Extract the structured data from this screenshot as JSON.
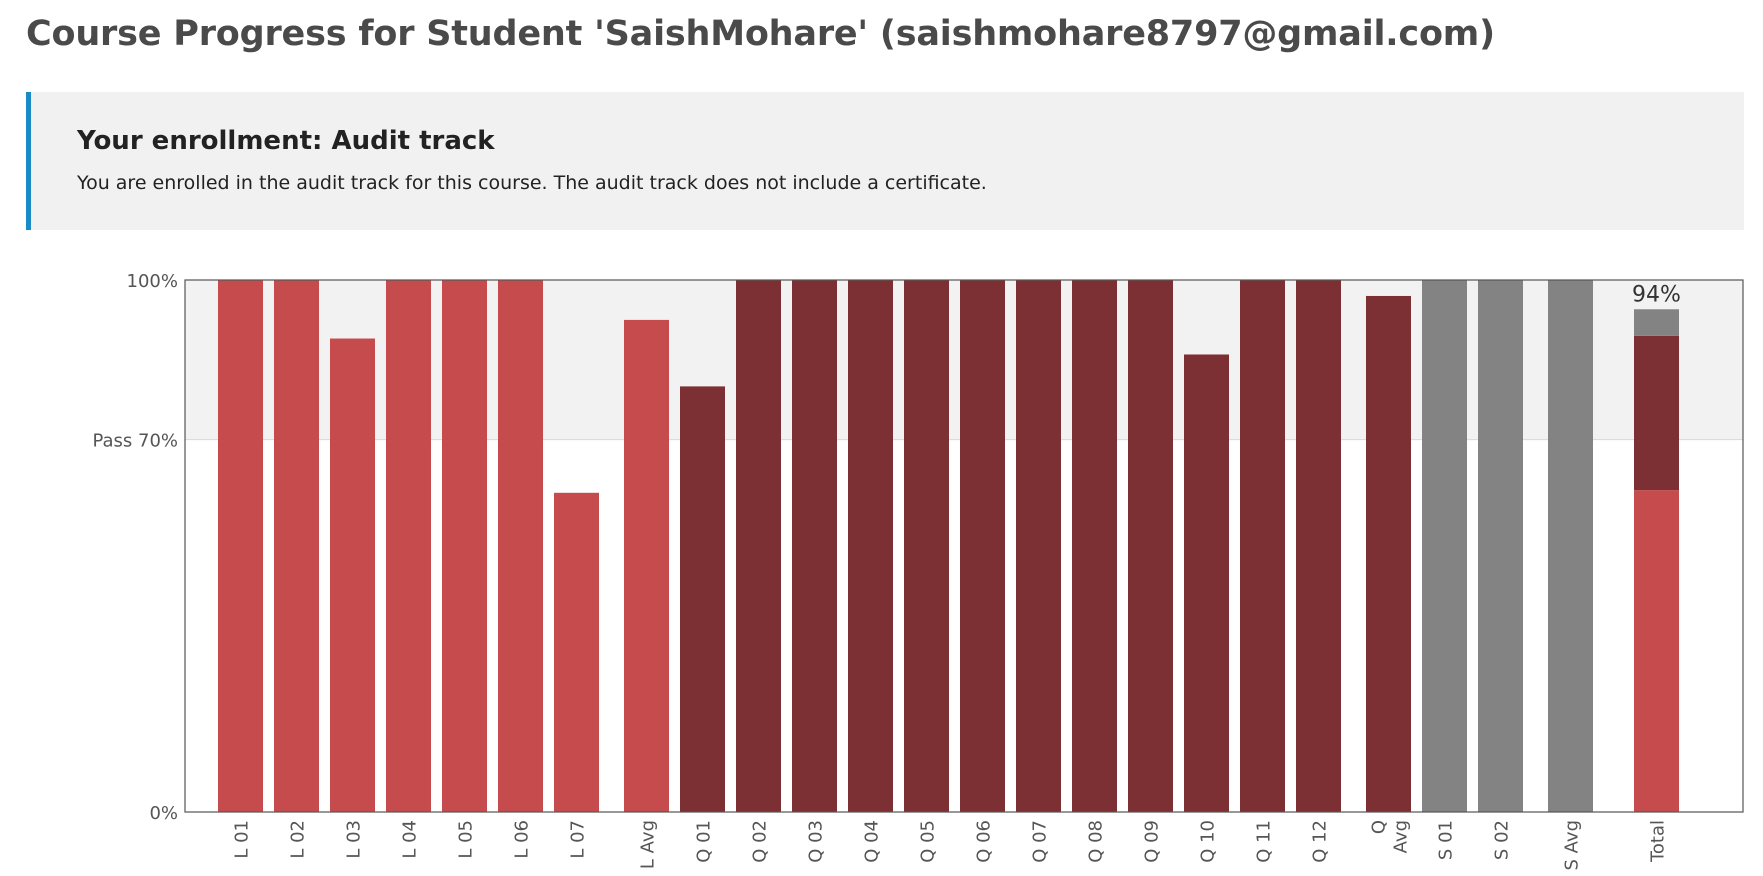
{
  "header": {
    "title": "Course Progress for Student 'SaishMohare' (saishmohare8797@gmail.com)"
  },
  "enrollment": {
    "heading": "Your enrollment: Audit track",
    "message": "You are enrolled in the audit track for this course. The audit track does not include a certificate."
  },
  "colors": {
    "lab": "#c64b4d",
    "quiz": "#7d3033",
    "survey": "#838383",
    "pass_band": "#f2f2f2",
    "frame": "#555555",
    "accent_bar": "#1a8bc4"
  },
  "chart_data": {
    "type": "bar",
    "ylim": [
      0,
      100
    ],
    "y_ticks": [
      {
        "label": "0%",
        "value": 0
      },
      {
        "label": "Pass 70%",
        "value": 70
      },
      {
        "label": "100%",
        "value": 100
      }
    ],
    "pass_threshold": 70,
    "bars": [
      {
        "label": "L 01",
        "value": 100,
        "group": "lab"
      },
      {
        "label": "L 02",
        "value": 100,
        "group": "lab"
      },
      {
        "label": "L 03",
        "value": 89,
        "group": "lab"
      },
      {
        "label": "L 04",
        "value": 100,
        "group": "lab"
      },
      {
        "label": "L 05",
        "value": 100,
        "group": "lab"
      },
      {
        "label": "L 06",
        "value": 100,
        "group": "lab"
      },
      {
        "label": "L 07",
        "value": 60,
        "group": "lab"
      },
      {
        "label": "L Avg",
        "value": 92.5,
        "group": "lab",
        "gap_before": true
      },
      {
        "label": "Q 01",
        "value": 80,
        "group": "quiz"
      },
      {
        "label": "Q 02",
        "value": 100,
        "group": "quiz"
      },
      {
        "label": "Q 03",
        "value": 100,
        "group": "quiz"
      },
      {
        "label": "Q 04",
        "value": 100,
        "group": "quiz"
      },
      {
        "label": "Q 05",
        "value": 100,
        "group": "quiz"
      },
      {
        "label": "Q 06",
        "value": 100,
        "group": "quiz"
      },
      {
        "label": "Q 07",
        "value": 100,
        "group": "quiz"
      },
      {
        "label": "Q 08",
        "value": 100,
        "group": "quiz"
      },
      {
        "label": "Q 09",
        "value": 100,
        "group": "quiz"
      },
      {
        "label": "Q 10",
        "value": 86,
        "group": "quiz"
      },
      {
        "label": "Q 11",
        "value": 100,
        "group": "quiz"
      },
      {
        "label": "Q 12",
        "value": 100,
        "group": "quiz"
      },
      {
        "label": "Q Avg",
        "value": 97,
        "group": "quiz",
        "gap_before": true,
        "label_lines": [
          "Q",
          "Avg"
        ]
      },
      {
        "label": "S 01",
        "value": 100,
        "group": "survey"
      },
      {
        "label": "S 02",
        "value": 100,
        "group": "survey"
      },
      {
        "label": "S Avg",
        "value": 100,
        "group": "survey",
        "gap_before": true
      }
    ],
    "total": {
      "label": "Total",
      "value_label": "94%",
      "segments": [
        {
          "group": "lab",
          "value": 60.5
        },
        {
          "group": "quiz",
          "value": 29
        },
        {
          "group": "survey",
          "value": 5
        }
      ]
    }
  }
}
